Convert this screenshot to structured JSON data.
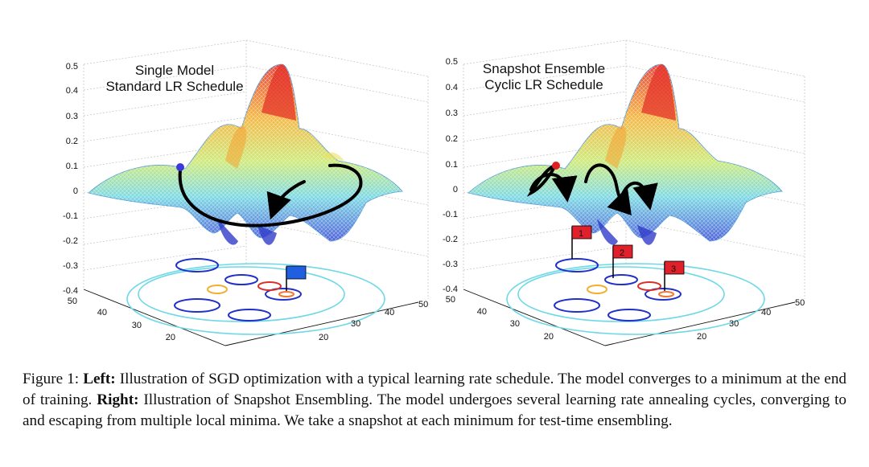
{
  "panels": [
    {
      "id": "left",
      "title_line1": "Single Model",
      "title_line2": "Standard LR Schedule",
      "z_ticks": [
        "0.5",
        "0.4",
        "0.3",
        "0.2",
        "0.1",
        "0",
        "-0.1",
        "-0.2",
        "-0.3",
        "-0.4"
      ],
      "x_ticks": [
        "50",
        "40",
        "30",
        "20"
      ],
      "y_ticks": [
        "50",
        "40",
        "30",
        "20"
      ],
      "flags": []
    },
    {
      "id": "right",
      "title_line1": "Snapshot Ensemble",
      "title_line2": "Cyclic LR Schedule",
      "z_ticks": [
        "0.5",
        "0.4",
        "0.3",
        "0.2",
        "0.1",
        "0",
        "-0.1",
        "-0.2",
        "-0.3",
        "-0.4"
      ],
      "x_ticks": [
        "50",
        "40",
        "30",
        "20"
      ],
      "y_ticks": [
        "50",
        "40",
        "30",
        "20"
      ],
      "flags": [
        "1",
        "2",
        "3"
      ]
    }
  ],
  "colors": {
    "start_point_left": "#3a3adb",
    "start_point_right": "#e02020",
    "flag_left": "#1f5fe0",
    "flag_right": "#e0202a"
  },
  "caption": {
    "figure_label": "Figure 1:",
    "left_label": "Left:",
    "left_text": "Illustration of SGD optimization with a typical learning rate schedule. The model converges to a minimum at the end of training.",
    "right_label": "Right:",
    "right_text": "Illustration of Snapshot Ensembling. The model undergoes several learning rate annealing cycles, converging to and escaping from multiple local minima. We take a snapshot at each minimum for test-time ensembling."
  }
}
